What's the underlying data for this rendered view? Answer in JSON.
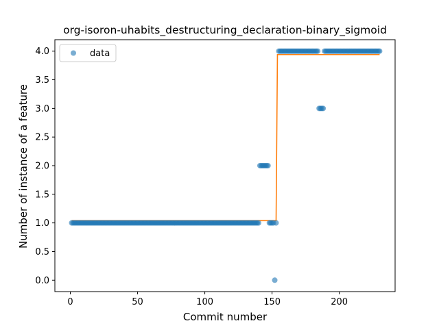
{
  "chart_data": {
    "type": "scatter",
    "title": "org-isoron-uhabits_destructuring_declaration-binary_sigmoid",
    "xlabel": "Commit number",
    "ylabel": "Number of instance of a feature",
    "xlim": [
      -11.5,
      241.5
    ],
    "ylim": [
      -0.2,
      4.2
    ],
    "x_ticks": [
      0,
      50,
      100,
      150,
      200
    ],
    "x_tick_labels": [
      "0",
      "50",
      "100",
      "150",
      "200"
    ],
    "y_ticks": [
      0.0,
      0.5,
      1.0,
      1.5,
      2.0,
      2.5,
      3.0,
      3.5,
      4.0
    ],
    "y_tick_labels": [
      "0.0",
      "0.5",
      "1.0",
      "1.5",
      "2.0",
      "2.5",
      "3.0",
      "3.5",
      "4.0"
    ],
    "grid": false,
    "legend": {
      "position": "top-left",
      "entries": [
        "data"
      ]
    },
    "colors": {
      "data": "#1f77b4",
      "fit": "#ff7f0e"
    },
    "series": [
      {
        "name": "data",
        "kind": "scatter",
        "runs": [
          {
            "x_start": 1,
            "x_end": 140,
            "y": 1.0
          },
          {
            "x_start": 141,
            "x_end": 147,
            "y": 2.0
          },
          {
            "x_start": 148,
            "x_end": 151,
            "y": 1.0
          },
          {
            "x_start": 152,
            "x_end": 152,
            "y": 0.0
          },
          {
            "x_start": 153,
            "x_end": 153,
            "y": 1.0
          },
          {
            "x_start": 155,
            "x_end": 184,
            "y": 4.0
          },
          {
            "x_start": 185,
            "x_end": 188,
            "y": 3.0
          },
          {
            "x_start": 189,
            "x_end": 230,
            "y": 4.0
          }
        ]
      },
      {
        "kind": "line",
        "x": [
          1,
          153,
          154,
          230
        ],
        "y": [
          1.04,
          1.04,
          3.94,
          3.94
        ]
      }
    ]
  }
}
